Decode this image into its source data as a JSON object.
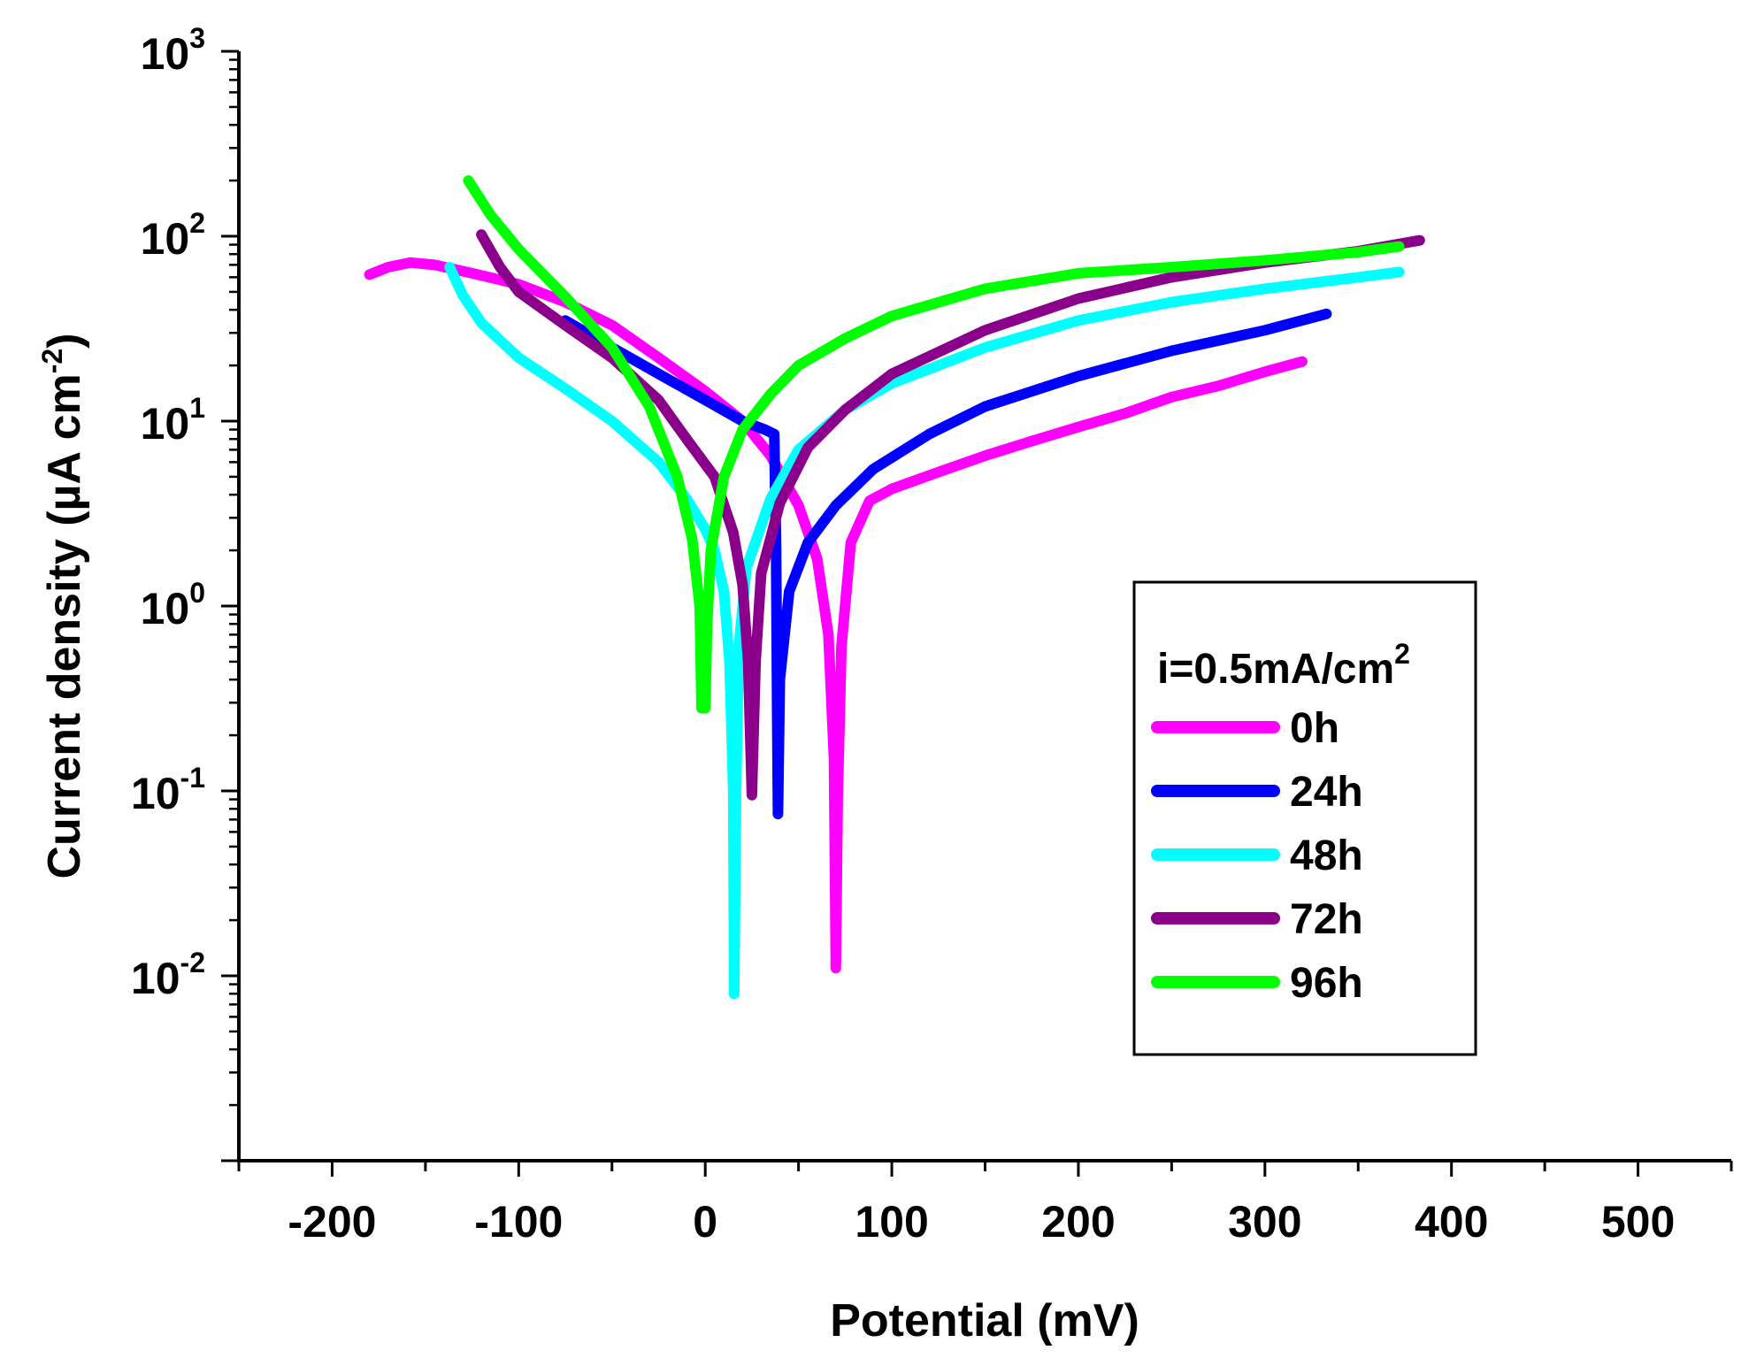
{
  "chart_data": {
    "type": "line",
    "title": "",
    "xlabel": "Potential (mV)",
    "ylabel_main": "Current density (µA cm",
    "ylabel_exp": "-2",
    "ylabel_close": ")",
    "xlim": [
      -250,
      550
    ],
    "ylim_log10": [
      -3,
      3
    ],
    "x_ticks": [
      -200,
      -100,
      0,
      100,
      200,
      300,
      400,
      500
    ],
    "x_tick_labels": [
      "-200",
      "-100",
      "0",
      "100",
      "200",
      "300",
      "400",
      "500"
    ],
    "y_ticks": [
      {
        "exp": -2,
        "base": "10",
        "sup": "-2"
      },
      {
        "exp": -1,
        "base": "10",
        "sup": "-1"
      },
      {
        "exp": 0,
        "base": "10",
        "sup": "0"
      },
      {
        "exp": 1,
        "base": "10",
        "sup": "1"
      },
      {
        "exp": 2,
        "base": "10",
        "sup": "2"
      },
      {
        "exp": 3,
        "base": "10",
        "sup": "3"
      }
    ],
    "legend": {
      "title_main": "i=0.5mA/cm",
      "title_sup": "2",
      "position": "right"
    },
    "series": [
      {
        "name": "0h",
        "color": "#FF00FF",
        "points": [
          [
            -180,
            62
          ],
          [
            -170,
            68
          ],
          [
            -158,
            72
          ],
          [
            -145,
            70
          ],
          [
            -125,
            63
          ],
          [
            -100,
            55
          ],
          [
            -75,
            44
          ],
          [
            -50,
            33
          ],
          [
            -25,
            22
          ],
          [
            0,
            14.5
          ],
          [
            20,
            10
          ],
          [
            35,
            6.5
          ],
          [
            50,
            3.5
          ],
          [
            60,
            1.8
          ],
          [
            66,
            0.7
          ],
          [
            69,
            0.15
          ],
          [
            70,
            0.011
          ],
          [
            71,
            0.09
          ],
          [
            73,
            0.6
          ],
          [
            78,
            2.2
          ],
          [
            88,
            3.7
          ],
          [
            100,
            4.3
          ],
          [
            125,
            5.3
          ],
          [
            150,
            6.5
          ],
          [
            175,
            7.8
          ],
          [
            200,
            9.3
          ],
          [
            225,
            11
          ],
          [
            250,
            13.5
          ],
          [
            275,
            15.5
          ],
          [
            300,
            18.5
          ],
          [
            320,
            21
          ]
        ]
      },
      {
        "name": "24h",
        "color": "#0000FF",
        "points": [
          [
            -75,
            35
          ],
          [
            -50,
            25
          ],
          [
            -25,
            18
          ],
          [
            0,
            13
          ],
          [
            20,
            10
          ],
          [
            32,
            9
          ],
          [
            37,
            8.5
          ],
          [
            38,
            2
          ],
          [
            38.5,
            0.3
          ],
          [
            39,
            0.075
          ],
          [
            40,
            0.4
          ],
          [
            45,
            1.2
          ],
          [
            55,
            2.2
          ],
          [
            70,
            3.5
          ],
          [
            90,
            5.5
          ],
          [
            120,
            8.5
          ],
          [
            150,
            12
          ],
          [
            200,
            17.5
          ],
          [
            250,
            24
          ],
          [
            300,
            31
          ],
          [
            333,
            38
          ]
        ]
      },
      {
        "name": "48h",
        "color": "#00FFFF",
        "points": [
          [
            -137,
            68
          ],
          [
            -130,
            48
          ],
          [
            -120,
            34
          ],
          [
            -100,
            22
          ],
          [
            -75,
            15
          ],
          [
            -50,
            10
          ],
          [
            -25,
            6
          ],
          [
            -10,
            3.8
          ],
          [
            0,
            2.6
          ],
          [
            5,
            2
          ],
          [
            10,
            1.2
          ],
          [
            13,
            0.5
          ],
          [
            15,
            0.1
          ],
          [
            15.5,
            0.008
          ],
          [
            16.5,
            0.1
          ],
          [
            18,
            0.6
          ],
          [
            22,
            1.6
          ],
          [
            35,
            3.8
          ],
          [
            50,
            7
          ],
          [
            75,
            11.5
          ],
          [
            100,
            16
          ],
          [
            150,
            25
          ],
          [
            200,
            35
          ],
          [
            250,
            44
          ],
          [
            300,
            52
          ],
          [
            350,
            60
          ],
          [
            372,
            64
          ]
        ]
      },
      {
        "name": "72h",
        "color": "#8B008B",
        "points": [
          [
            -120,
            102
          ],
          [
            -110,
            68
          ],
          [
            -100,
            50
          ],
          [
            -75,
            33
          ],
          [
            -50,
            22
          ],
          [
            -25,
            13
          ],
          [
            -10,
            8
          ],
          [
            5,
            5
          ],
          [
            15,
            2.5
          ],
          [
            20,
            1.3
          ],
          [
            23,
            0.5
          ],
          [
            25,
            0.095
          ],
          [
            27,
            0.5
          ],
          [
            30,
            1.5
          ],
          [
            40,
            3.6
          ],
          [
            55,
            7.2
          ],
          [
            75,
            11.5
          ],
          [
            100,
            18
          ],
          [
            150,
            31
          ],
          [
            200,
            46
          ],
          [
            250,
            60
          ],
          [
            300,
            72
          ],
          [
            350,
            83
          ],
          [
            383,
            95
          ]
        ]
      },
      {
        "name": "96h",
        "color": "#00FF00",
        "points": [
          [
            -127,
            200
          ],
          [
            -115,
            130
          ],
          [
            -100,
            85
          ],
          [
            -75,
            47
          ],
          [
            -50,
            25
          ],
          [
            -30,
            12
          ],
          [
            -15,
            5
          ],
          [
            -7,
            2.3
          ],
          [
            -3,
            1
          ],
          [
            -2,
            0.28
          ],
          [
            0,
            0.28
          ],
          [
            1,
            0.8
          ],
          [
            3,
            2
          ],
          [
            10,
            5
          ],
          [
            20,
            9
          ],
          [
            35,
            14
          ],
          [
            50,
            20
          ],
          [
            75,
            28
          ],
          [
            100,
            37
          ],
          [
            150,
            52
          ],
          [
            200,
            63
          ],
          [
            250,
            68
          ],
          [
            300,
            74
          ],
          [
            350,
            82
          ],
          [
            372,
            88
          ]
        ]
      }
    ]
  }
}
